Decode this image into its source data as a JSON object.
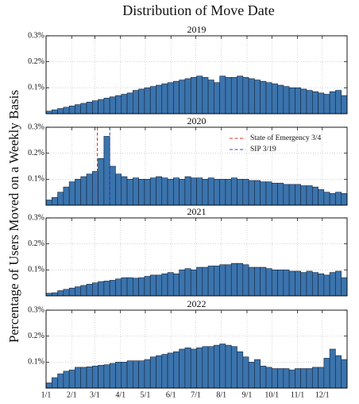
{
  "title": "Distribution of Move Date",
  "y_label": "Percentage of Users Moved on a Weekly Basis",
  "chart_data": [
    {
      "type": "histogram",
      "title": "2019",
      "color": "#3b74ad",
      "bins": [
        0,
        7,
        14,
        21,
        28,
        35,
        42,
        49,
        56,
        63,
        70,
        77,
        84,
        91,
        98,
        105,
        112,
        119,
        126,
        133,
        140,
        147,
        154,
        161,
        168,
        175,
        182,
        189,
        196,
        203,
        210,
        217,
        224,
        231,
        238,
        245,
        252,
        259,
        266,
        273,
        280,
        287,
        294,
        301,
        308,
        315,
        322,
        329,
        336,
        343,
        350,
        357,
        364
      ],
      "values": [
        0.01,
        0.015,
        0.02,
        0.025,
        0.03,
        0.035,
        0.04,
        0.045,
        0.05,
        0.055,
        0.06,
        0.065,
        0.07,
        0.075,
        0.08,
        0.09,
        0.095,
        0.1,
        0.105,
        0.11,
        0.115,
        0.12,
        0.125,
        0.13,
        0.135,
        0.14,
        0.145,
        0.14,
        0.13,
        0.12,
        0.145,
        0.14,
        0.14,
        0.145,
        0.14,
        0.135,
        0.13,
        0.125,
        0.12,
        0.115,
        0.11,
        0.105,
        0.1,
        0.1,
        0.095,
        0.09,
        0.085,
        0.08,
        0.075,
        0.085,
        0.09,
        0.07
      ],
      "xlim": [
        0,
        364
      ],
      "ylim": [
        0,
        0.3
      ],
      "yticks": [
        {
          "value": 0.1,
          "label": "0.1%"
        },
        {
          "value": 0.2,
          "label": "0.2%"
        },
        {
          "value": 0.3,
          "label": "0.3%"
        }
      ],
      "grid": true
    },
    {
      "type": "histogram",
      "title": "2020",
      "color": "#3b74ad",
      "bins": [
        0,
        7,
        14,
        21,
        28,
        35,
        42,
        49,
        56,
        63,
        70,
        77,
        84,
        91,
        98,
        105,
        112,
        119,
        126,
        133,
        140,
        147,
        154,
        161,
        168,
        175,
        182,
        189,
        196,
        203,
        210,
        217,
        224,
        231,
        238,
        245,
        252,
        259,
        266,
        273,
        280,
        287,
        294,
        301,
        308,
        315,
        322,
        329,
        336,
        343,
        350,
        357,
        364
      ],
      "values": [
        0.02,
        0.03,
        0.05,
        0.07,
        0.09,
        0.1,
        0.11,
        0.12,
        0.13,
        0.18,
        0.265,
        0.15,
        0.12,
        0.11,
        0.1,
        0.105,
        0.1,
        0.1,
        0.105,
        0.11,
        0.105,
        0.1,
        0.105,
        0.1,
        0.11,
        0.105,
        0.105,
        0.1,
        0.105,
        0.1,
        0.1,
        0.1,
        0.105,
        0.1,
        0.1,
        0.095,
        0.095,
        0.09,
        0.09,
        0.085,
        0.085,
        0.08,
        0.08,
        0.08,
        0.075,
        0.075,
        0.07,
        0.06,
        0.05,
        0.045,
        0.05,
        0.045
      ],
      "xlim": [
        0,
        364
      ],
      "ylim": [
        0,
        0.3
      ],
      "yticks": [
        {
          "value": 0.1,
          "label": "0.1%"
        },
        {
          "value": 0.2,
          "label": "0.2%"
        },
        {
          "value": 0.3,
          "label": "0.3%"
        }
      ],
      "grid": true,
      "vlines": [
        {
          "x": 62,
          "label": "State of Emergency 3/4",
          "color": "#e0312b"
        },
        {
          "x": 77,
          "label": "SIP 3/19",
          "color": "#2a4cc4"
        }
      ],
      "legend": "upper right"
    },
    {
      "type": "histogram",
      "title": "2021",
      "color": "#3b74ad",
      "bins": [
        0,
        7,
        14,
        21,
        28,
        35,
        42,
        49,
        56,
        63,
        70,
        77,
        84,
        91,
        98,
        105,
        112,
        119,
        126,
        133,
        140,
        147,
        154,
        161,
        168,
        175,
        182,
        189,
        196,
        203,
        210,
        217,
        224,
        231,
        238,
        245,
        252,
        259,
        266,
        273,
        280,
        287,
        294,
        301,
        308,
        315,
        322,
        329,
        336,
        343,
        350,
        357,
        364
      ],
      "values": [
        0.01,
        0.012,
        0.02,
        0.025,
        0.03,
        0.035,
        0.04,
        0.045,
        0.05,
        0.055,
        0.057,
        0.06,
        0.065,
        0.07,
        0.07,
        0.068,
        0.07,
        0.075,
        0.08,
        0.08,
        0.085,
        0.09,
        0.085,
        0.1,
        0.105,
        0.1,
        0.11,
        0.11,
        0.115,
        0.115,
        0.12,
        0.12,
        0.125,
        0.125,
        0.12,
        0.11,
        0.11,
        0.11,
        0.105,
        0.1,
        0.1,
        0.1,
        0.095,
        0.095,
        0.09,
        0.095,
        0.09,
        0.085,
        0.08,
        0.09,
        0.095,
        0.07
      ],
      "xlim": [
        0,
        364
      ],
      "ylim": [
        0,
        0.3
      ],
      "yticks": [
        {
          "value": 0.1,
          "label": "0.1%"
        },
        {
          "value": 0.2,
          "label": "0.2%"
        },
        {
          "value": 0.3,
          "label": "0.3%"
        }
      ],
      "grid": true
    },
    {
      "type": "histogram",
      "title": "2022",
      "color": "#3b74ad",
      "bins": [
        0,
        7,
        14,
        21,
        28,
        35,
        42,
        49,
        56,
        63,
        70,
        77,
        84,
        91,
        98,
        105,
        112,
        119,
        126,
        133,
        140,
        147,
        154,
        161,
        168,
        175,
        182,
        189,
        196,
        203,
        210,
        217,
        224,
        231,
        238,
        245,
        252,
        259,
        266,
        273,
        280,
        287,
        294,
        301,
        308,
        315,
        322,
        329,
        336,
        343,
        350,
        357,
        364
      ],
      "values": [
        0.02,
        0.04,
        0.055,
        0.065,
        0.07,
        0.08,
        0.08,
        0.082,
        0.085,
        0.088,
        0.09,
        0.095,
        0.1,
        0.1,
        0.105,
        0.105,
        0.105,
        0.11,
        0.12,
        0.125,
        0.13,
        0.135,
        0.14,
        0.15,
        0.155,
        0.15,
        0.155,
        0.16,
        0.16,
        0.165,
        0.17,
        0.165,
        0.16,
        0.14,
        0.12,
        0.1,
        0.11,
        0.085,
        0.08,
        0.075,
        0.075,
        0.075,
        0.07,
        0.075,
        0.075,
        0.075,
        0.08,
        0.08,
        0.115,
        0.15,
        0.125,
        0.11
      ],
      "xlim": [
        0,
        364
      ],
      "ylim": [
        0,
        0.3
      ],
      "yticks": [
        {
          "value": 0.1,
          "label": "0.1%"
        },
        {
          "value": 0.2,
          "label": "0.2%"
        },
        {
          "value": 0.3,
          "label": "0.3%"
        }
      ],
      "xticks": [
        {
          "value": 0,
          "label": "1/1"
        },
        {
          "value": 31,
          "label": "2/1"
        },
        {
          "value": 59,
          "label": "3/1"
        },
        {
          "value": 90,
          "label": "4/1"
        },
        {
          "value": 120,
          "label": "5/1"
        },
        {
          "value": 151,
          "label": "6/1"
        },
        {
          "value": 181,
          "label": "7/1"
        },
        {
          "value": 212,
          "label": "8/1"
        },
        {
          "value": 243,
          "label": "9/1"
        },
        {
          "value": 273,
          "label": "10/1"
        },
        {
          "value": 304,
          "label": "11/1"
        },
        {
          "value": 334,
          "label": "12/1"
        }
      ],
      "grid": true
    }
  ]
}
